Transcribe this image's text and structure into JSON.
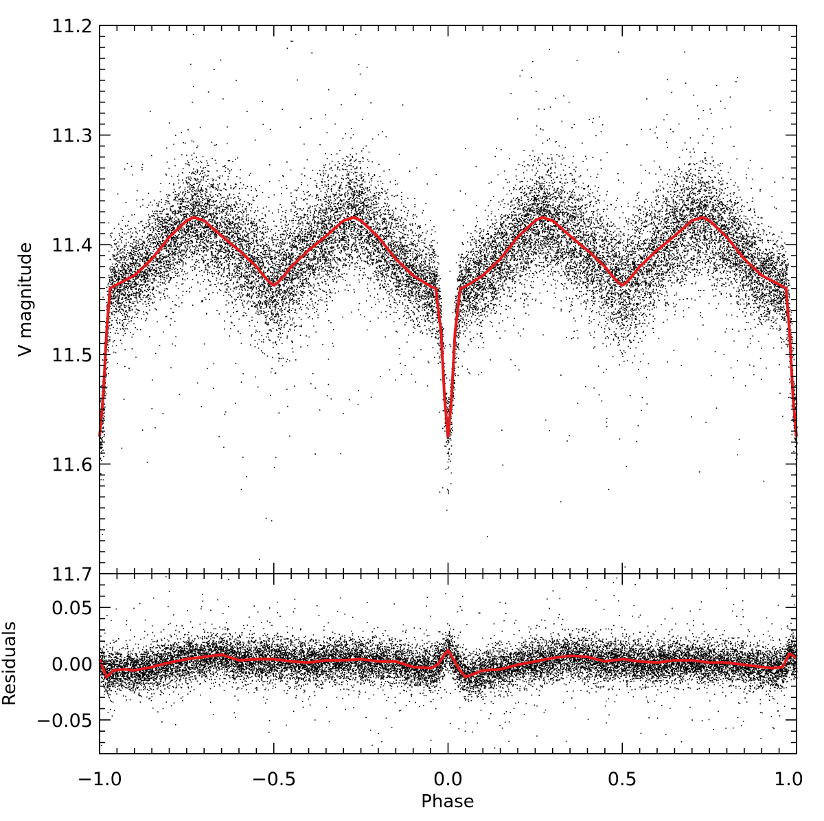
{
  "chart_data": [
    {
      "type": "scatter",
      "panel": "top",
      "xlabel": "",
      "ylabel": "V magnitude",
      "xlim": [
        -1.0,
        1.0
      ],
      "ylim": [
        11.7,
        11.2
      ],
      "y_axis_inverted": true,
      "yticks": [
        "11.2",
        "11.3",
        "11.4",
        "11.5",
        "11.6",
        "11.7"
      ],
      "point_color": "#000000",
      "fit_color": "#e41a1c",
      "series": [
        {
          "type": "line",
          "x": [
            -1.0,
            -0.99,
            -0.98,
            -0.97,
            -0.96,
            -0.9,
            -0.85,
            -0.8,
            -0.75,
            -0.73,
            -0.7,
            -0.65,
            -0.6,
            -0.55,
            -0.53,
            -0.51,
            -0.5,
            -0.49,
            -0.47,
            -0.45,
            -0.4,
            -0.35,
            -0.3,
            -0.27,
            -0.25,
            -0.2,
            -0.15,
            -0.1,
            -0.05,
            -0.035,
            -0.02,
            -0.01,
            0.0,
            0.01,
            0.02,
            0.035,
            0.05,
            0.1,
            0.15,
            0.2,
            0.25,
            0.27,
            0.3,
            0.35,
            0.4,
            0.45,
            0.47,
            0.49,
            0.5,
            0.51,
            0.53,
            0.55,
            0.6,
            0.65,
            0.7,
            0.73,
            0.75,
            0.8,
            0.85,
            0.9,
            0.96,
            0.97,
            0.98,
            0.99,
            1.0
          ],
          "y": [
            11.575,
            11.54,
            11.48,
            11.44,
            11.438,
            11.428,
            11.413,
            11.393,
            11.378,
            11.375,
            11.378,
            11.392,
            11.405,
            11.42,
            11.428,
            11.435,
            11.437,
            11.435,
            11.428,
            11.42,
            11.405,
            11.392,
            11.378,
            11.375,
            11.378,
            11.393,
            11.413,
            11.428,
            11.438,
            11.44,
            11.48,
            11.54,
            11.575,
            11.54,
            11.48,
            11.44,
            11.438,
            11.428,
            11.413,
            11.393,
            11.378,
            11.375,
            11.378,
            11.392,
            11.405,
            11.42,
            11.428,
            11.435,
            11.437,
            11.435,
            11.428,
            11.42,
            11.405,
            11.392,
            11.378,
            11.375,
            11.378,
            11.393,
            11.413,
            11.428,
            11.438,
            11.44,
            11.48,
            11.54,
            11.575
          ]
        }
      ]
    },
    {
      "type": "scatter",
      "panel": "bottom",
      "xlabel": "Phase",
      "ylabel": "Residuals",
      "xlim": [
        -1.0,
        1.0
      ],
      "ylim": [
        -0.08,
        0.08
      ],
      "xticks": [
        "−1.0",
        "−0.5",
        "0.0",
        "0.5",
        "1.0"
      ],
      "yticks": [
        "0.05",
        "0.00",
        "−0.05"
      ],
      "point_color": "#000000",
      "fit_color": "#e41a1c",
      "series": [
        {
          "type": "line",
          "x": [
            -1.0,
            -0.98,
            -0.96,
            -0.93,
            -0.9,
            -0.85,
            -0.8,
            -0.75,
            -0.7,
            -0.65,
            -0.6,
            -0.55,
            -0.5,
            -0.45,
            -0.4,
            -0.35,
            -0.3,
            -0.25,
            -0.2,
            -0.15,
            -0.1,
            -0.05,
            -0.03,
            -0.015,
            0.0,
            0.015,
            0.03,
            0.05,
            0.1,
            0.15,
            0.2,
            0.25,
            0.3,
            0.35,
            0.4,
            0.45,
            0.5,
            0.55,
            0.6,
            0.65,
            0.7,
            0.75,
            0.8,
            0.85,
            0.9,
            0.93,
            0.96,
            0.98,
            1.0
          ],
          "y": [
            0.004,
            -0.012,
            -0.006,
            -0.005,
            -0.006,
            -0.003,
            0.001,
            0.004,
            0.006,
            0.008,
            0.003,
            0.004,
            0.004,
            0.002,
            0.001,
            0.003,
            0.003,
            0.004,
            0.002,
            0.002,
            -0.003,
            -0.004,
            -0.001,
            0.006,
            0.012,
            0.004,
            -0.004,
            -0.012,
            -0.006,
            -0.005,
            -0.001,
            0.002,
            0.005,
            0.007,
            0.006,
            0.002,
            0.004,
            0.002,
            0.001,
            0.003,
            0.003,
            0.001,
            0.001,
            -0.001,
            -0.003,
            -0.004,
            -0.003,
            0.009,
            0.005
          ]
        }
      ]
    }
  ]
}
